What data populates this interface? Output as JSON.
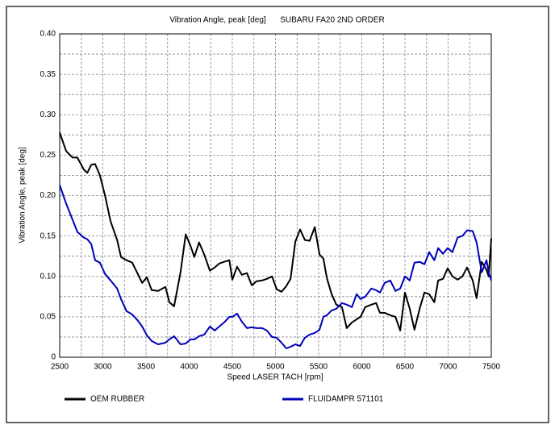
{
  "chart_data": {
    "type": "line",
    "title": "Vibration Angle, peak [deg]",
    "subtitle": "SUBARU FA20 2ND ORDER",
    "x_label": "Speed LASER TACH [rpm]",
    "y_label": "Vibration Angle, peak [deg]",
    "x": [
      2500,
      2575,
      2650,
      2705,
      2780,
      2820,
      2865,
      2910,
      2965,
      3025,
      3090,
      3165,
      3210,
      3275,
      3340,
      3400,
      3455,
      3510,
      3565,
      3640,
      3725,
      3770,
      3825,
      3900,
      3960,
      4015,
      4060,
      4115,
      4175,
      4240,
      4295,
      4350,
      4405,
      4465,
      4500,
      4555,
      4610,
      4670,
      4725,
      4780,
      4845,
      4900,
      4960,
      5015,
      5070,
      5125,
      5175,
      5230,
      5285,
      5340,
      5395,
      5455,
      5510,
      5555,
      5595,
      5650,
      5705,
      5770,
      5825,
      5885,
      5940,
      5985,
      6040,
      6110,
      6165,
      6210,
      6265,
      6330,
      6390,
      6445,
      6500,
      6555,
      6610,
      6670,
      6725,
      6780,
      6840,
      6885,
      6940,
      6995,
      7050,
      7110,
      7165,
      7220,
      7285,
      7330,
      7390,
      7445,
      7470,
      7500
    ],
    "series": [
      {
        "name": "OEM RUBBER",
        "color": "#000000",
        "values": [
          0.278,
          0.255,
          0.247,
          0.247,
          0.232,
          0.228,
          0.238,
          0.239,
          0.225,
          0.2,
          0.168,
          0.145,
          0.124,
          0.12,
          0.117,
          0.104,
          0.092,
          0.099,
          0.083,
          0.082,
          0.087,
          0.068,
          0.063,
          0.105,
          0.152,
          0.138,
          0.124,
          0.142,
          0.127,
          0.107,
          0.111,
          0.116,
          0.118,
          0.12,
          0.096,
          0.112,
          0.102,
          0.104,
          0.089,
          0.094,
          0.095,
          0.097,
          0.1,
          0.084,
          0.081,
          0.088,
          0.097,
          0.143,
          0.158,
          0.145,
          0.144,
          0.161,
          0.127,
          0.122,
          0.098,
          0.078,
          0.065,
          0.062,
          0.036,
          0.043,
          0.047,
          0.05,
          0.062,
          0.065,
          0.067,
          0.055,
          0.055,
          0.052,
          0.05,
          0.033,
          0.08,
          0.06,
          0.034,
          0.06,
          0.08,
          0.078,
          0.068,
          0.095,
          0.097,
          0.11,
          0.1,
          0.096,
          0.1,
          0.111,
          0.095,
          0.073,
          0.118,
          0.108,
          0.1,
          0.147
        ]
      },
      {
        "name": "FLUIDAMPR 571101",
        "color": "#0000bb",
        "values": [
          0.213,
          0.19,
          0.17,
          0.155,
          0.148,
          0.146,
          0.14,
          0.12,
          0.117,
          0.103,
          0.095,
          0.085,
          0.072,
          0.057,
          0.053,
          0.046,
          0.038,
          0.027,
          0.02,
          0.016,
          0.018,
          0.022,
          0.026,
          0.016,
          0.017,
          0.022,
          0.022,
          0.026,
          0.028,
          0.038,
          0.033,
          0.038,
          0.043,
          0.05,
          0.05,
          0.054,
          0.044,
          0.036,
          0.037,
          0.036,
          0.036,
          0.033,
          0.025,
          0.024,
          0.018,
          0.011,
          0.013,
          0.016,
          0.014,
          0.024,
          0.028,
          0.03,
          0.034,
          0.05,
          0.052,
          0.058,
          0.06,
          0.067,
          0.065,
          0.062,
          0.078,
          0.072,
          0.075,
          0.085,
          0.083,
          0.08,
          0.092,
          0.095,
          0.082,
          0.085,
          0.1,
          0.095,
          0.117,
          0.118,
          0.115,
          0.13,
          0.12,
          0.135,
          0.128,
          0.135,
          0.13,
          0.148,
          0.15,
          0.157,
          0.156,
          0.142,
          0.105,
          0.12,
          0.105,
          0.095
        ]
      }
    ],
    "xlim": [
      2500,
      7500
    ],
    "ylim": [
      0,
      0.4
    ],
    "xticks": [
      2500,
      3000,
      3500,
      4000,
      4500,
      5000,
      5500,
      6000,
      6500,
      7000,
      7500
    ],
    "yticks": [
      0,
      0.05,
      {
        "value": 0.1,
        "label": "0.10"
      },
      0.15,
      {
        "value": 0.2,
        "label": "0.20"
      },
      0.25,
      {
        "value": 0.3,
        "label": "0.30"
      },
      0.35,
      {
        "value": 0.4,
        "label": "0.40"
      }
    ],
    "x_minor_ticks": [
      2750,
      3250,
      3750,
      4250,
      4750,
      5250,
      5750,
      6250,
      6750,
      7250
    ],
    "y_minor_ticks": [
      0.025,
      0.075,
      0.125,
      0.175,
      0.225,
      0.275,
      0.325,
      0.375
    ],
    "grid": true,
    "legend": "bottom"
  }
}
